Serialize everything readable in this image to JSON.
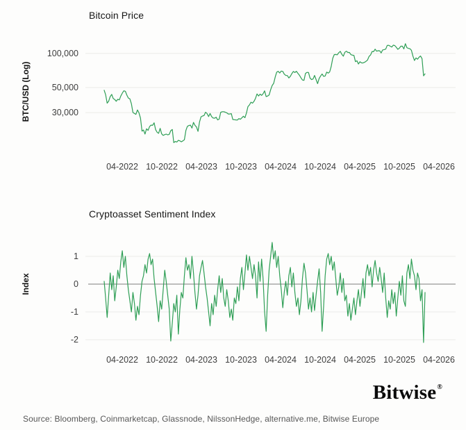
{
  "charts": {
    "top_title": "Bitcoin Price",
    "top_ylabel": "BTC/USD (Log)",
    "bottom_title": "Cryptoasset Sentiment Index",
    "bottom_ylabel": "Index"
  },
  "colors": {
    "line_green": "#2E9E55",
    "grid": "#EBEBE7",
    "zero_line": "#7D7D7D",
    "tick_text": "#3D3D3D"
  },
  "footer": {
    "source": "Source: Bloomberg, Coinmarketcap, Glassnode, NilssonHedge, alternative.me, Bitwise Europe",
    "logo_text": "Bitwise",
    "logo_mark": "®"
  },
  "chart_data": [
    {
      "type": "line",
      "title": "Bitcoin Price",
      "ylabel": "BTC/USD (Log)",
      "yscale": "log",
      "unit_multiplier": 1000,
      "grid": "horizontal",
      "yticks": [
        {
          "label": "100,000",
          "value": 100
        },
        {
          "label": "50,000",
          "value": 50
        },
        {
          "label": "30,000",
          "value": 30
        }
      ],
      "xticks": [
        {
          "label": "04-2022",
          "month": 3
        },
        {
          "label": "10-2022",
          "month": 9
        },
        {
          "label": "04-2023",
          "month": 15
        },
        {
          "label": "10-2023",
          "month": 21
        },
        {
          "label": "04-2024",
          "month": 27
        },
        {
          "label": "10-2024",
          "month": 33
        },
        {
          "label": "04-2025",
          "month": 39
        },
        {
          "label": "10-2025",
          "month": 45
        },
        {
          "label": "04-2026",
          "month": 51
        }
      ],
      "series": [
        {
          "name": "BTC/USD",
          "start_month": 0.26,
          "end_month": 48.9,
          "values": [
            47.3,
            43.2,
            36.4,
            37.9,
            41.6,
            43.5,
            40.0,
            39.2,
            37.8,
            39.4,
            38.9,
            42.0,
            44.6,
            46.8,
            46.3,
            42.8,
            40.4,
            39.7,
            36.0,
            30.1,
            29.5,
            29.0,
            31.7,
            29.9,
            26.8,
            20.6,
            21.1,
            19.4,
            21.6,
            20.9,
            22.6,
            23.3,
            23.2,
            24.4,
            21.2,
            20.1,
            19.7,
            21.8,
            19.5,
            18.9,
            19.2,
            19.4,
            19.1,
            19.3,
            20.8,
            21.3,
            16.3,
            16.7,
            16.5,
            17.1,
            16.9,
            16.6,
            16.9,
            17.3,
            20.9,
            22.7,
            23.1,
            23.3,
            21.9,
            24.6,
            23.2,
            22.4,
            20.5,
            24.8,
            27.6,
            28.0,
            28.3,
            30.3,
            29.4,
            27.7,
            29.5,
            27.7,
            26.9,
            26.8,
            27.3,
            25.9,
            26.3,
            30.2,
            30.6,
            30.6,
            30.3,
            29.9,
            29.2,
            29.2,
            29.4,
            26.1,
            26.0,
            25.9,
            25.8,
            26.6,
            26.2,
            27.0,
            27.9,
            27.1,
            29.8,
            33.9,
            35.1,
            37.1,
            36.4,
            37.8,
            40.1,
            43.9,
            42.1,
            43.7,
            42.6,
            44.0,
            46.7,
            41.6,
            42.1,
            42.9,
            47.8,
            52.1,
            54.5,
            62.0,
            68.3,
            69.5,
            67.2,
            69.9,
            69.4,
            65.7,
            63.9,
            63.8,
            60.8,
            62.9,
            66.3,
            69.3,
            67.8,
            69.6,
            66.7,
            64.3,
            61.0,
            58.2,
            57.9,
            66.7,
            68.0,
            67.9,
            60.7,
            58.7,
            59.5,
            63.9,
            58.9,
            54.1,
            60.0,
            63.3,
            65.9,
            62.8,
            63.2,
            68.4,
            67.0,
            68.7,
            76.7,
            90.5,
            97.7,
            97.9,
            97.3,
            101.4,
            104.4,
            98.2,
            94.6,
            102.3,
            104.7,
            102.1,
            102.0,
            97.7,
            96.6,
            96.1,
            84.7,
            86.1,
            80.7,
            84.4,
            82.6,
            82.4,
            83.5,
            85.2,
            87.5,
            94.0,
            97.0,
            104.1,
            103.7,
            109.0,
            104.6,
            105.7,
            105.5,
            101.0,
            107.3,
            108.2,
            109.2,
            117.9,
            118.0,
            115.8,
            113.9,
            118.3,
            117.4,
            113.5,
            108.8,
            111.2,
            115.9,
            115.8,
            109.6,
            122.0,
            112.5,
            110.7,
            110.1,
            106.6,
            94.7,
            86.6,
            91.3,
            89.0,
            92.5,
            95.0,
            90.0,
            63.5,
            66.0
          ]
        }
      ]
    },
    {
      "type": "line",
      "title": "Cryptoasset Sentiment Index",
      "ylabel": "Index",
      "yscale": "linear",
      "ylim": [
        -2.3,
        1.7
      ],
      "zero_line": true,
      "grid": "horizontal",
      "yticks": [
        {
          "label": "1",
          "value": 1
        },
        {
          "label": "0",
          "value": 0
        },
        {
          "label": "-1",
          "value": -1
        },
        {
          "label": "-2",
          "value": -2
        }
      ],
      "grid_values": [
        1,
        -1,
        -2
      ],
      "xticks": [
        {
          "label": "04-2022",
          "month": 3
        },
        {
          "label": "10-2022",
          "month": 9
        },
        {
          "label": "04-2023",
          "month": 15
        },
        {
          "label": "10-2023",
          "month": 21
        },
        {
          "label": "04-2024",
          "month": 27
        },
        {
          "label": "10-2024",
          "month": 33
        },
        {
          "label": "04-2025",
          "month": 39
        },
        {
          "label": "10-2025",
          "month": 45
        },
        {
          "label": "04-2026",
          "month": 51
        }
      ],
      "series": [
        {
          "name": "Cryptoasset Sentiment Index",
          "start_month": 0.26,
          "end_month": 48.9,
          "values": [
            0.1,
            -0.5,
            -1.2,
            -0.4,
            0.4,
            -0.2,
            0.3,
            -0.6,
            -0.1,
            0.5,
            0.2,
            0.8,
            1.2,
            0.6,
            1.0,
            0.3,
            -0.2,
            -0.6,
            -1.0,
            -0.3,
            -0.7,
            -1.3,
            -0.8,
            -1.1,
            -0.4,
            0.1,
            0.3,
            0.7,
            0.4,
            0.9,
            1.1,
            0.7,
            0.9,
            0.2,
            -0.3,
            -0.8,
            -1.35,
            -0.6,
            -0.9,
            -0.2,
            0.5,
            0.1,
            -0.4,
            -0.9,
            -2.05,
            -1.4,
            -0.7,
            -1.0,
            -0.4,
            -1.8,
            -0.9,
            -0.3,
            -0.5,
            0.3,
            0.95,
            0.5,
            0.7,
            0.2,
            1.0,
            0.4,
            -0.3,
            -0.9,
            -0.4,
            0.3,
            0.6,
            0.85,
            0.4,
            -0.1,
            -0.5,
            -1.0,
            -1.5,
            -0.7,
            -1.1,
            -0.4,
            -0.8,
            -0.2,
            0.3,
            -0.3,
            0.2,
            -0.5,
            -0.8,
            -0.2,
            -0.6,
            -1.2,
            -0.9,
            -1.3,
            -0.5,
            -0.7,
            -0.1,
            -0.6,
            0.2,
            0.6,
            -0.2,
            0.4,
            1.05,
            0.5,
            1.0,
            0.6,
            0.2,
            0.7,
            0.3,
            -0.5,
            0.8,
            0.1,
            0.9,
            0.2,
            -1.0,
            -1.7,
            -0.4,
            0.5,
            1.0,
            1.5,
            0.9,
            1.2,
            0.6,
            1.0,
            0.3,
            -0.2,
            -0.85,
            -0.3,
            0.1,
            -0.4,
            0.3,
            0.6,
            -0.1,
            0.4,
            -0.3,
            -0.8,
            -0.5,
            -1.1,
            -0.6,
            0.2,
            0.75,
            0.4,
            -0.2,
            -0.9,
            -0.5,
            -1.0,
            -0.3,
            -0.95,
            -0.4,
            0.1,
            0.55,
            -0.3,
            -1.7,
            -0.8,
            0.3,
            0.9,
            1.1,
            0.7,
            1.0,
            0.5,
            0.8,
            0.2,
            -0.4,
            -0.1,
            0.4,
            -0.3,
            0.2,
            -0.6,
            -0.4,
            -1.15,
            -0.7,
            -1.3,
            -0.9,
            -0.5,
            -1.1,
            -0.6,
            -0.2,
            -0.8,
            -0.3,
            0.2,
            -0.5,
            0.4,
            0.7,
            0.3,
            0.6,
            -0.1,
            0.5,
            0.85,
            0.4,
            0.1,
            0.6,
            0.2,
            -0.3,
            0.4,
            -0.5,
            -1.2,
            -0.6,
            -0.9,
            -0.2,
            -0.7,
            -0.3,
            -1.15,
            -0.5,
            0.1,
            -0.4,
            0.3,
            -0.6,
            -0.8,
            0.4,
            0.7,
            0.2,
            0.9,
            0.5,
            0.3,
            -0.2,
            0.4,
            0.2,
            -0.6,
            -0.2,
            -2.1,
            -0.3
          ]
        }
      ]
    }
  ]
}
